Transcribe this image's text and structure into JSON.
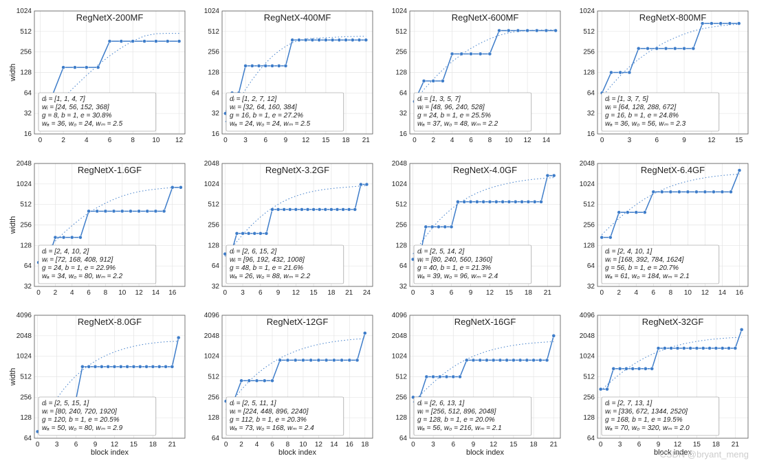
{
  "layout": {
    "rows": 3,
    "cols": 4
  },
  "colors": {
    "bg": "#ffffff",
    "line": "#3d7cc9",
    "marker": "#3d7cc9",
    "trend": "#3d7cc9",
    "axis": "#555555",
    "grid": "#e4e4e4",
    "text": "#222222",
    "box_border": "#888888",
    "box_bg": "#ffffff"
  },
  "style": {
    "line_width": 1.5,
    "trend_width": 1.0,
    "trend_dash": "1.5,3",
    "marker_radius": 2.5,
    "title_fontsize": 13,
    "axis_fontsize": 11,
    "tick_fontsize": 10,
    "box_fontsize": 10
  },
  "ylabel": "width",
  "xlabel": "block index",
  "watermark": "CSDN @bryant_meng",
  "panels": [
    {
      "title": "RegNetX-200MF",
      "x_ticks": [
        0,
        2,
        4,
        6,
        8,
        10,
        12
      ],
      "y_ticks": [
        16,
        32,
        64,
        128,
        256,
        512,
        1024
      ],
      "xlim": [
        -0.5,
        12.5
      ],
      "ylim": [
        16,
        1024
      ],
      "show_ylabel": true,
      "show_xlabel": false,
      "y": [
        24,
        56,
        152,
        152,
        152,
        152,
        368,
        368,
        368,
        368,
        368,
        368,
        368
      ],
      "trend": [
        24,
        36,
        54,
        80,
        116,
        165,
        225,
        295,
        370,
        440,
        475,
        480,
        480
      ],
      "box": [
        "dᵢ = [1, 1, 4, 7]",
        "wᵢ = [24, 56, 152, 368]",
        "g = 8, b = 1, e = 30.8%",
        "wₐ = 36, w₀ = 24, wₘ = 2.5"
      ]
    },
    {
      "title": "RegNetX-400MF",
      "x_ticks": [
        0,
        3,
        6,
        9,
        12,
        15,
        18,
        21
      ],
      "y_ticks": [
        16,
        32,
        64,
        128,
        256,
        512,
        1024
      ],
      "xlim": [
        -0.5,
        22
      ],
      "ylim": [
        16,
        1024
      ],
      "show_ylabel": false,
      "show_xlabel": false,
      "y": [
        32,
        64,
        64,
        160,
        160,
        160,
        160,
        160,
        160,
        160,
        384,
        384,
        384,
        384,
        384,
        384,
        384,
        384,
        384,
        384,
        384,
        384
      ],
      "trend": [
        24,
        36,
        50,
        72,
        100,
        135,
        175,
        220,
        265,
        310,
        350,
        380,
        400,
        405,
        410,
        415,
        420,
        425,
        430,
        432,
        434,
        436
      ],
      "box": [
        "dᵢ = [1, 2, 7, 12]",
        "wᵢ = [32, 64, 160, 384]",
        "g = 16, b = 1, e = 27.2%",
        "wₐ = 24, w₀ = 24, wₘ = 2.5"
      ]
    },
    {
      "title": "RegNetX-600MF",
      "x_ticks": [
        0,
        2,
        4,
        6,
        8,
        10,
        12,
        14
      ],
      "y_ticks": [
        16,
        32,
        64,
        128,
        256,
        512,
        1024
      ],
      "xlim": [
        -0.5,
        15.5
      ],
      "ylim": [
        16,
        1024
      ],
      "show_ylabel": false,
      "show_xlabel": false,
      "y": [
        48,
        96,
        96,
        96,
        240,
        240,
        240,
        240,
        240,
        528,
        528,
        528,
        528,
        528,
        528,
        528
      ],
      "trend": [
        48,
        72,
        102,
        140,
        185,
        235,
        290,
        345,
        400,
        450,
        490,
        515,
        530,
        535,
        538,
        540
      ],
      "box": [
        "dᵢ = [1, 3, 5, 7]",
        "wᵢ = [48, 96, 240, 528]",
        "g = 24, b = 1, e = 25.5%",
        "wₐ = 37, w₀ = 48, wₘ = 2.2"
      ]
    },
    {
      "title": "RegNetX-800MF",
      "x_ticks": [
        0,
        3,
        6,
        9,
        12,
        15
      ],
      "y_ticks": [
        16,
        32,
        64,
        128,
        256,
        512,
        1024
      ],
      "xlim": [
        -0.5,
        16
      ],
      "ylim": [
        16,
        1024
      ],
      "show_ylabel": false,
      "show_xlabel": false,
      "y": [
        64,
        128,
        128,
        128,
        288,
        288,
        288,
        288,
        288,
        288,
        288,
        672,
        672,
        672,
        672,
        672
      ],
      "trend": [
        56,
        82,
        115,
        155,
        200,
        250,
        305,
        360,
        415,
        470,
        520,
        560,
        595,
        620,
        640,
        655
      ],
      "box": [
        "dᵢ = [1, 3, 7, 5]",
        "wᵢ = [64, 128, 288, 672]",
        "g = 16, b = 1, e = 24.8%",
        "wₐ = 36, w₀ = 56, wₘ = 2.3"
      ]
    },
    {
      "title": "RegNetX-1.6GF",
      "x_ticks": [
        0,
        2,
        4,
        6,
        8,
        10,
        12,
        14,
        16
      ],
      "y_ticks": [
        32,
        64,
        128,
        256,
        512,
        1024,
        2048
      ],
      "xlim": [
        -0.5,
        17.5
      ],
      "ylim": [
        32,
        2048
      ],
      "show_ylabel": true,
      "show_xlabel": false,
      "y": [
        72,
        72,
        168,
        168,
        168,
        168,
        408,
        408,
        408,
        408,
        408,
        408,
        408,
        408,
        408,
        408,
        912,
        912
      ],
      "trend": [
        80,
        110,
        148,
        195,
        250,
        315,
        385,
        460,
        535,
        610,
        680,
        740,
        790,
        830,
        860,
        885,
        905,
        920
      ],
      "box": [
        "dᵢ = [2, 4, 10, 2]",
        "wᵢ = [72, 168, 408, 912]",
        "g = 24, b = 1, e = 22.9%",
        "wₐ = 34, w₀ = 80, wₘ = 2.2"
      ]
    },
    {
      "title": "RegNetX-3.2GF",
      "x_ticks": [
        0,
        3,
        6,
        9,
        12,
        15,
        18,
        21,
        24
      ],
      "y_ticks": [
        32,
        64,
        128,
        256,
        512,
        1024,
        2048
      ],
      "xlim": [
        -0.5,
        25
      ],
      "ylim": [
        32,
        2048
      ],
      "show_ylabel": false,
      "show_xlabel": false,
      "y": [
        96,
        96,
        192,
        192,
        192,
        192,
        192,
        192,
        432,
        432,
        432,
        432,
        432,
        432,
        432,
        432,
        432,
        432,
        432,
        432,
        432,
        432,
        432,
        1008,
        1008
      ],
      "trend": [
        88,
        114,
        146,
        185,
        230,
        280,
        335,
        395,
        455,
        515,
        575,
        630,
        680,
        725,
        765,
        800,
        830,
        855,
        875,
        895,
        910,
        925,
        940,
        955,
        970
      ],
      "box": [
        "dᵢ = [2, 6, 15, 2]",
        "wᵢ = [96, 192, 432, 1008]",
        "g = 48, b = 1, e = 21.6%",
        "wₐ = 26, w₀ = 88, wₘ = 2.2"
      ]
    },
    {
      "title": "RegNetX-4.0GF",
      "x_ticks": [
        0,
        3,
        6,
        9,
        12,
        15,
        18,
        21
      ],
      "y_ticks": [
        32,
        64,
        128,
        256,
        512,
        1024,
        2048
      ],
      "xlim": [
        -0.5,
        23
      ],
      "ylim": [
        32,
        2048
      ],
      "show_ylabel": false,
      "show_xlabel": false,
      "y": [
        80,
        80,
        240,
        240,
        240,
        240,
        240,
        560,
        560,
        560,
        560,
        560,
        560,
        560,
        560,
        560,
        560,
        560,
        560,
        560,
        560,
        1360,
        1360
      ],
      "trend": [
        96,
        130,
        175,
        230,
        295,
        365,
        440,
        520,
        600,
        680,
        755,
        825,
        890,
        950,
        1005,
        1055,
        1100,
        1140,
        1175,
        1205,
        1230,
        1250,
        1270
      ],
      "box": [
        "dᵢ = [2, 5, 14, 2]",
        "wᵢ = [80, 240, 560, 1360]",
        "g = 40, b = 1, e = 21.3%",
        "wₐ = 39, w₀ = 96, wₘ = 2.4"
      ]
    },
    {
      "title": "RegNetX-6.4GF",
      "x_ticks": [
        0,
        2,
        4,
        6,
        8,
        10,
        12,
        14,
        16
      ],
      "y_ticks": [
        32,
        64,
        128,
        256,
        512,
        1024,
        2048
      ],
      "xlim": [
        -0.5,
        17
      ],
      "ylim": [
        32,
        2048
      ],
      "show_ylabel": false,
      "show_xlabel": false,
      "y": [
        168,
        168,
        392,
        392,
        392,
        392,
        784,
        784,
        784,
        784,
        784,
        784,
        784,
        784,
        784,
        784,
        1624
      ],
      "trend": [
        184,
        245,
        320,
        410,
        510,
        620,
        730,
        840,
        945,
        1040,
        1125,
        1200,
        1265,
        1320,
        1365,
        1400,
        1430
      ],
      "box": [
        "dᵢ = [2, 4, 10, 1]",
        "wᵢ = [168, 392, 784, 1624]",
        "g = 56, b = 1, e = 20.7%",
        "wₐ = 61, w₀ = 184, wₘ = 2.1"
      ]
    },
    {
      "title": "RegNetX-8.0GF",
      "x_ticks": [
        0,
        3,
        6,
        9,
        12,
        15,
        18,
        21
      ],
      "y_ticks": [
        64,
        128,
        256,
        512,
        1024,
        2048,
        4096
      ],
      "xlim": [
        -0.5,
        23
      ],
      "ylim": [
        64,
        4096
      ],
      "show_ylabel": true,
      "show_xlabel": true,
      "y": [
        80,
        80,
        240,
        240,
        240,
        240,
        240,
        720,
        720,
        720,
        720,
        720,
        720,
        720,
        720,
        720,
        720,
        720,
        720,
        720,
        720,
        720,
        1920
      ],
      "trend": [
        80,
        120,
        175,
        245,
        330,
        425,
        530,
        640,
        755,
        870,
        980,
        1085,
        1185,
        1275,
        1360,
        1435,
        1500,
        1555,
        1600,
        1640,
        1670,
        1690,
        1705
      ],
      "box": [
        "dᵢ = [2, 5, 15, 1]",
        "wᵢ = [80, 240, 720, 1920]",
        "g = 120, b = 1, e = 20.5%",
        "wₐ = 50, w₀ = 80, wₘ = 2.9"
      ]
    },
    {
      "title": "RegNetX-12GF",
      "x_ticks": [
        0,
        2,
        4,
        6,
        8,
        10,
        12,
        14,
        16,
        18
      ],
      "y_ticks": [
        64,
        128,
        256,
        512,
        1024,
        2048,
        4096
      ],
      "xlim": [
        -0.5,
        19
      ],
      "ylim": [
        64,
        4096
      ],
      "show_ylabel": false,
      "show_xlabel": true,
      "y": [
        224,
        224,
        448,
        448,
        448,
        448,
        448,
        896,
        896,
        896,
        896,
        896,
        896,
        896,
        896,
        896,
        896,
        896,
        2240
      ],
      "trend": [
        168,
        240,
        330,
        440,
        560,
        690,
        825,
        960,
        1090,
        1215,
        1330,
        1435,
        1530,
        1610,
        1680,
        1740,
        1790,
        1830,
        1860
      ],
      "box": [
        "dᵢ = [2, 5, 11, 1]",
        "wᵢ = [224, 448, 896, 2240]",
        "g = 112, b = 1, e = 20.3%",
        "wₐ = 73, w₀ = 168, wₘ = 2.4"
      ]
    },
    {
      "title": "RegNetX-16GF",
      "x_ticks": [
        0,
        3,
        6,
        9,
        12,
        15,
        18,
        21
      ],
      "y_ticks": [
        64,
        128,
        256,
        512,
        1024,
        2048,
        4096
      ],
      "xlim": [
        -0.5,
        22
      ],
      "ylim": [
        64,
        4096
      ],
      "show_ylabel": false,
      "show_xlabel": true,
      "y": [
        256,
        256,
        512,
        512,
        512,
        512,
        512,
        512,
        896,
        896,
        896,
        896,
        896,
        896,
        896,
        896,
        896,
        896,
        896,
        896,
        896,
        2048
      ],
      "trend": [
        216,
        272,
        340,
        420,
        510,
        610,
        715,
        820,
        925,
        1025,
        1120,
        1210,
        1290,
        1360,
        1425,
        1480,
        1530,
        1570,
        1605,
        1635,
        1660,
        1680
      ],
      "box": [
        "dᵢ = [2, 6, 13, 1]",
        "wᵢ = [256, 512, 896, 2048]",
        "g = 128, b = 1, e = 20.0%",
        "wₐ = 56, w₀ = 216, wₘ = 2.1"
      ]
    },
    {
      "title": "RegNetX-32GF",
      "x_ticks": [
        0,
        3,
        6,
        9,
        12,
        15,
        18,
        21
      ],
      "y_ticks": [
        64,
        128,
        256,
        512,
        1024,
        2048,
        4096
      ],
      "xlim": [
        -0.5,
        23
      ],
      "ylim": [
        64,
        4096
      ],
      "show_ylabel": false,
      "show_xlabel": true,
      "y": [
        336,
        336,
        672,
        672,
        672,
        672,
        672,
        672,
        672,
        1344,
        1344,
        1344,
        1344,
        1344,
        1344,
        1344,
        1344,
        1344,
        1344,
        1344,
        1344,
        1344,
        2520
      ],
      "trend": [
        320,
        390,
        470,
        560,
        660,
        765,
        875,
        985,
        1095,
        1200,
        1300,
        1395,
        1480,
        1560,
        1630,
        1695,
        1750,
        1800,
        1840,
        1875,
        1905,
        1930,
        1950
      ],
      "box": [
        "dᵢ = [2, 7, 13, 1]",
        "wᵢ = [336, 672, 1344, 2520]",
        "g = 168, b = 1, e = 19.5%",
        "wₐ = 70, w₀ = 320, wₘ = 2.0"
      ]
    }
  ]
}
